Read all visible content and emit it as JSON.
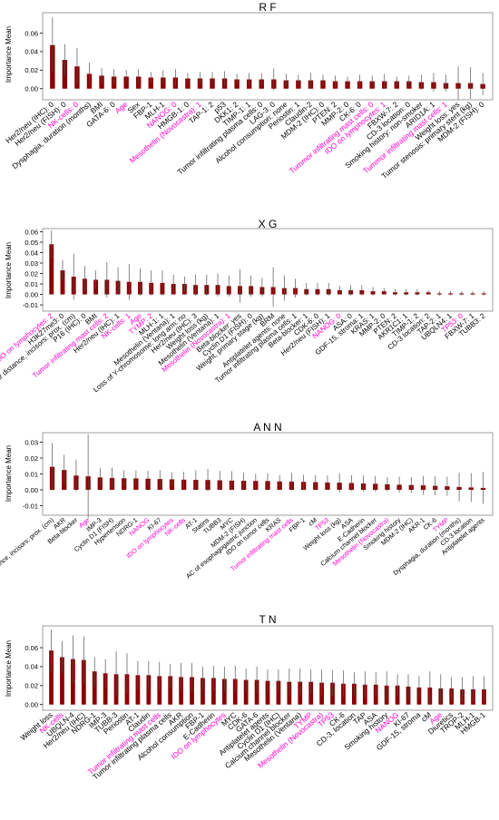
{
  "colors": {
    "bar": "#8b0000",
    "highlight": "#ff00cc",
    "text": "#000000",
    "errorbar": "#555555",
    "frame": "#888888"
  },
  "chart_data": [
    {
      "type": "bar",
      "title": "R F",
      "ylabel": "Importance Mean",
      "ylim": [
        -0.012,
        0.082
      ],
      "yticks": [
        0.0,
        0.02,
        0.04,
        0.06
      ],
      "yticklabels": [
        "0.00",
        "0.02",
        "0.04",
        "0.06"
      ],
      "categories": [
        "Her2/neu (IHC): 0",
        "Her2/neu (FISH): 0",
        "NK-cells: 0",
        "Dysphagia, duration (months)",
        "BMI",
        "GATA-6: 0",
        "Age",
        "Sex",
        "FBP-1",
        "MLH-1",
        "NANOG: 0",
        "HMGB-1: 0",
        "Mesothelin (Novocastra): 1",
        "TAP-1: 2",
        "p53",
        "DKK1: 2",
        "TIMP-1: 1",
        "Tumor infiltrating plasma cells: 0",
        "LAG-3: 0",
        "Alcohol consumption: none",
        "Periostin: 1",
        "Claudin-2",
        "MDM-2 (IHC): 0",
        "PTEN: 2",
        "MMP-2: 0",
        "CK-6: 0",
        "Tummor infiltrating mast cells: 0",
        "IDO on lymphocytes: 1",
        "FBXW-7: 2",
        "CD-3 location: 0",
        "Smoking history: non-smoker",
        "ARID1A: 1",
        "Tummor infiltrating mast cells: 1",
        "Weight loss: yes",
        "Tumor stenosis: primary stent (kg)",
        "MDM-2 (FISH): 0"
      ],
      "highlighted": [
        2,
        6,
        10,
        12,
        26,
        27,
        32
      ],
      "values": [
        0.047,
        0.031,
        0.024,
        0.016,
        0.014,
        0.013,
        0.013,
        0.013,
        0.012,
        0.012,
        0.012,
        0.011,
        0.011,
        0.011,
        0.011,
        0.01,
        0.01,
        0.01,
        0.01,
        0.009,
        0.009,
        0.009,
        0.009,
        0.008,
        0.008,
        0.008,
        0.008,
        0.008,
        0.008,
        0.008,
        0.007,
        0.007,
        0.006,
        0.006,
        0.006,
        0.005
      ],
      "errors": [
        0.03,
        0.017,
        0.02,
        0.012,
        0.008,
        0.008,
        0.007,
        0.008,
        0.006,
        0.008,
        0.009,
        0.006,
        0.007,
        0.007,
        0.008,
        0.006,
        0.007,
        0.007,
        0.012,
        0.007,
        0.006,
        0.008,
        0.006,
        0.006,
        0.005,
        0.007,
        0.006,
        0.008,
        0.005,
        0.006,
        0.008,
        0.01,
        0.009,
        0.018,
        0.017,
        0.012
      ]
    },
    {
      "type": "bar",
      "title": "X G",
      "ylabel": "Importance Mean",
      "ylim": [
        -0.016,
        0.063
      ],
      "yticks": [
        -0.01,
        0.0,
        0.01,
        0.02,
        0.03,
        0.04,
        0.05,
        0.06
      ],
      "yticklabels": [
        "-0.01",
        "0.00",
        "0.01",
        "0.02",
        "0.03",
        "0.04",
        "0.05",
        "0.06"
      ],
      "categories": [
        "IDO on lymphocytes: 2",
        "H3K27me3: 0",
        "Tumor distance, incisors: prox. (cm)",
        "P16 (IHC): 0",
        "BMI",
        "Tumor infiltrating mast cells: 2",
        "Her2/neu (IHC): 1",
        "NK-cells: 1",
        "Age",
        "TYMP: 2",
        "MLH-1: 1",
        "Mesothelin (Ventana): 1",
        "Loss of Y-chromosome: long arm: no",
        "Her2/neu (IHC): 3",
        "Weight loss (kg)",
        "Mesothelin (Ventana): 1",
        "Mesothelin (Novocastra): 1",
        "Beta-blocker: yes",
        "Cyclin D1 (FISH): 0",
        "Weight, primary stage (kg)",
        "BRM",
        "Antiplatelet agents: none",
        "Tumor infiltrating plasma cells: 1",
        "Beta-blocker: 1",
        "CDK-6: 0",
        "Her2/neu (FISH): 1",
        "NANOG: 0",
        "ASA: 0",
        "GDF-15, stroma: 1",
        "KRAS: 1",
        "MMP-2: 0",
        "PTEN: 2",
        "AKR1C1: 1",
        "TIMP-1: 2",
        "CD-3 location: 2",
        "TAP-2: 1",
        "UBQLN4: 1",
        "TP53: 0",
        "FBXW-7: 1",
        "TUBB3: 2"
      ],
      "highlighted": [
        0,
        5,
        7,
        8,
        9,
        16,
        26,
        37
      ],
      "values": [
        0.048,
        0.023,
        0.017,
        0.015,
        0.014,
        0.014,
        0.013,
        0.012,
        0.012,
        0.011,
        0.011,
        0.01,
        0.01,
        0.009,
        0.009,
        0.009,
        0.008,
        0.008,
        0.008,
        0.007,
        0.007,
        0.006,
        0.006,
        0.005,
        0.005,
        0.005,
        0.004,
        0.004,
        0.004,
        0.003,
        0.003,
        0.002,
        0.002,
        0.002,
        0.002,
        0.001,
        0.001,
        0.001,
        0.001,
        0.001
      ],
      "errors": [
        0.013,
        0.01,
        0.022,
        0.012,
        0.009,
        0.017,
        0.013,
        0.017,
        0.013,
        0.012,
        0.012,
        0.009,
        0.007,
        0.01,
        0.01,
        0.011,
        0.01,
        0.016,
        0.01,
        0.009,
        0.019,
        0.012,
        0.009,
        0.006,
        0.006,
        0.006,
        0.004,
        0.005,
        0.005,
        0.004,
        0.003,
        0.003,
        0.003,
        0.003,
        0.002,
        0.002,
        0.002,
        0.002,
        0.002,
        0.002
      ]
    },
    {
      "type": "bar",
      "title": "A N N",
      "ylabel": "Importance Mean",
      "ylim": [
        -0.016,
        0.036
      ],
      "yticks": [
        -0.01,
        0.0,
        0.01,
        0.02,
        0.03
      ],
      "yticklabels": [
        "-0.01",
        "0.00",
        "0.01",
        "0.02",
        "0.03"
      ],
      "categories": [
        "Tumor distance, incisors: prox. (cm)",
        "AKR",
        "Beta-blocker",
        "Age",
        "IMP-3",
        "Cyclin D1 (FISH)",
        "Hypertension",
        "NDRG-1",
        "NANOG",
        "KI-67",
        "IDO on lymphocytes",
        "NK-cells",
        "AT-1",
        "Statins",
        "TUBB3",
        "MYC",
        "MDM-2 (FISH)",
        "AC of esophagogastric junction",
        "IDO on tumor cells",
        "KRAS",
        "Tumor infiltrating mast cells",
        "FBP-1",
        "cM",
        "TP53",
        "Weight loss (kg)",
        "ASA",
        "E-Cadherin",
        "Calcium channel blocker",
        "Mesothelin (Novocastra)",
        "Smoking history",
        "MDM-2 (IHC)",
        "AKR-1",
        "CK-6",
        "TYMP",
        "Dysphagia, duration (months)",
        "CD-3 location",
        "Antiplatelet agents"
      ],
      "highlighted": [
        3,
        8,
        10,
        11,
        20,
        23,
        28,
        33
      ],
      "values": [
        0.0145,
        0.0125,
        0.009,
        0.0085,
        0.0078,
        0.0075,
        0.0073,
        0.0072,
        0.007,
        0.0068,
        0.0066,
        0.0064,
        0.0063,
        0.0062,
        0.006,
        0.0058,
        0.0057,
        0.0056,
        0.0055,
        0.0053,
        0.0052,
        0.005,
        0.0048,
        0.0046,
        0.0045,
        0.0043,
        0.004,
        0.0038,
        0.0035,
        0.0032,
        0.003,
        0.0028,
        0.0025,
        0.0022,
        0.0018,
        0.0015,
        0.0012
      ],
      "errors": [
        0.015,
        0.0095,
        0.01,
        0.0265,
        0.006,
        0.0065,
        0.005,
        0.005,
        0.005,
        0.0055,
        0.0045,
        0.005,
        0.006,
        0.007,
        0.006,
        0.006,
        0.005,
        0.0045,
        0.005,
        0.004,
        0.0055,
        0.0045,
        0.0045,
        0.0045,
        0.006,
        0.005,
        0.005,
        0.005,
        0.0045,
        0.005,
        0.005,
        0.006,
        0.006,
        0.006,
        0.009,
        0.009,
        0.01
      ]
    },
    {
      "type": "bar",
      "title": "T N",
      "ylabel": "Importance Mean",
      "ylim": [
        -0.006,
        0.083
      ],
      "yticks": [
        0.0,
        0.02,
        0.04,
        0.06
      ],
      "yticklabels": [
        "0.00",
        "0.02",
        "0.04",
        "0.06"
      ],
      "categories": [
        "Weight loss",
        "NK-cells",
        "UBQLN-4",
        "Her2/neu (IHC)",
        "NDRG-1",
        "IMP-3",
        "TUBB-3",
        "Periostin",
        "AT-1",
        "Claudin",
        "Tumor infiltrating mast cells",
        "Tumor infiltrating plasma cells",
        "AKR",
        "Alcohol consumption",
        "FBP-1",
        "E-Cadherin",
        "IDO on lymphocytes",
        "MYC",
        "CDK-6",
        "GATA-6",
        "Antiplatelet agents",
        "Cyclin D1 (IHC)",
        "Calcium channel blocker",
        "Mesothelin (Ventana)",
        "TYMP",
        "Mesothelin (Novocastra)",
        "TP53",
        "CK-6",
        "CD-3, location",
        "TAP",
        "ASA",
        "Smoking history",
        "NANOG",
        "KI-67",
        "GDF-15, stroma",
        "cM",
        "Age",
        "Diuretics",
        "TROP-2",
        "MLH-1",
        "HMGB-1"
      ],
      "highlighted": [
        1,
        10,
        16,
        24,
        25,
        26,
        32,
        36
      ],
      "values": [
        0.057,
        0.05,
        0.048,
        0.047,
        0.035,
        0.033,
        0.032,
        0.032,
        0.031,
        0.031,
        0.03,
        0.03,
        0.029,
        0.029,
        0.028,
        0.028,
        0.027,
        0.027,
        0.026,
        0.026,
        0.025,
        0.025,
        0.024,
        0.024,
        0.024,
        0.023,
        0.023,
        0.022,
        0.022,
        0.021,
        0.021,
        0.02,
        0.02,
        0.019,
        0.018,
        0.018,
        0.017,
        0.017,
        0.016,
        0.016,
        0.016
      ],
      "errors": [
        0.022,
        0.017,
        0.025,
        0.025,
        0.015,
        0.015,
        0.024,
        0.022,
        0.015,
        0.015,
        0.015,
        0.013,
        0.015,
        0.015,
        0.012,
        0.013,
        0.013,
        0.014,
        0.012,
        0.014,
        0.012,
        0.012,
        0.014,
        0.014,
        0.013,
        0.014,
        0.013,
        0.014,
        0.012,
        0.014,
        0.013,
        0.015,
        0.012,
        0.013,
        0.012,
        0.017,
        0.015,
        0.012,
        0.013,
        0.014,
        0.014
      ]
    }
  ]
}
